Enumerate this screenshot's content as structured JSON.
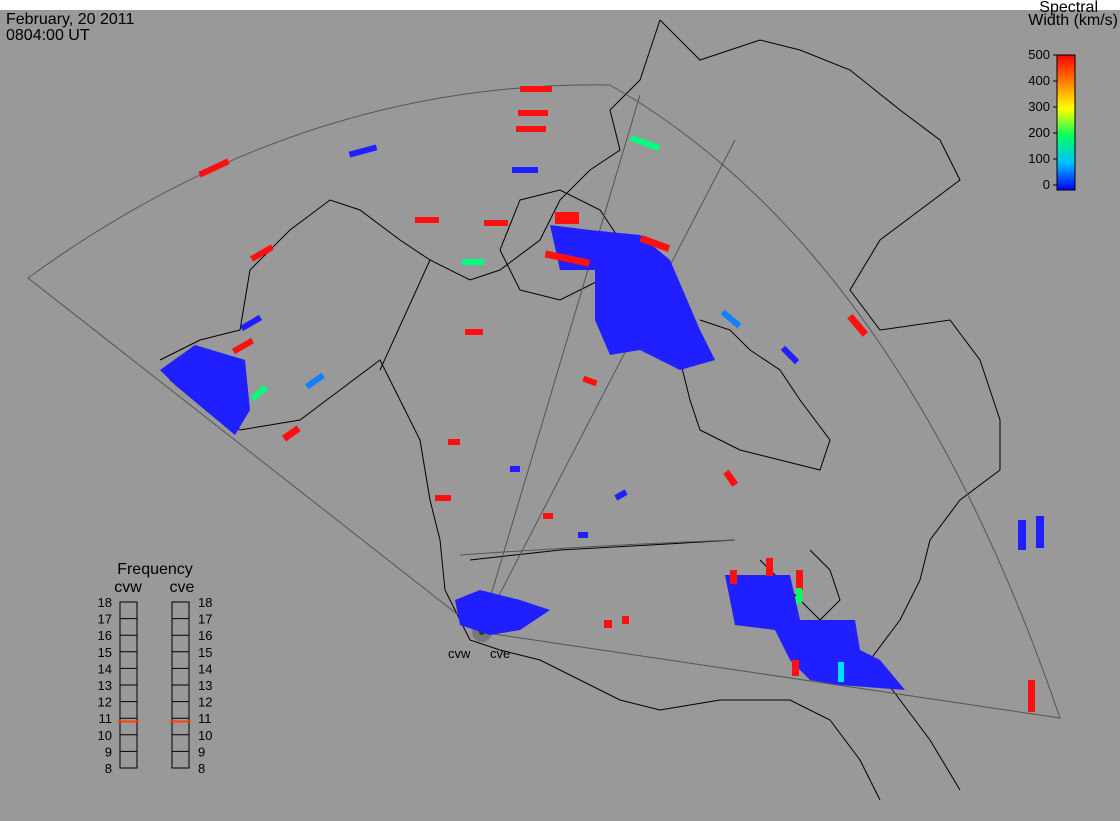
{
  "header": {
    "date": "February, 20 2011",
    "time": "0804:00 UT"
  },
  "colorbar": {
    "title_line1": "Spectral",
    "title_line2": "Width (km/s)",
    "lim": [
      0,
      500
    ],
    "ticks": [
      0,
      100,
      200,
      300,
      400,
      500
    ],
    "colors": [
      "#0000ff",
      "#00c0ff",
      "#00ff60",
      "#ffff00",
      "#ff8000",
      "#ff0000"
    ]
  },
  "radars": [
    "cvw",
    "cve"
  ],
  "frequency": {
    "title": "Frequency",
    "lim": [
      8,
      18
    ],
    "ticks": [
      8,
      9,
      10,
      11,
      12,
      13,
      14,
      15,
      16,
      17,
      18
    ],
    "series": [
      {
        "name": "cvw",
        "value": 10.8,
        "color": "#ff4000"
      },
      {
        "name": "cve",
        "value": 10.8,
        "color": "#ff4000"
      }
    ]
  }
}
